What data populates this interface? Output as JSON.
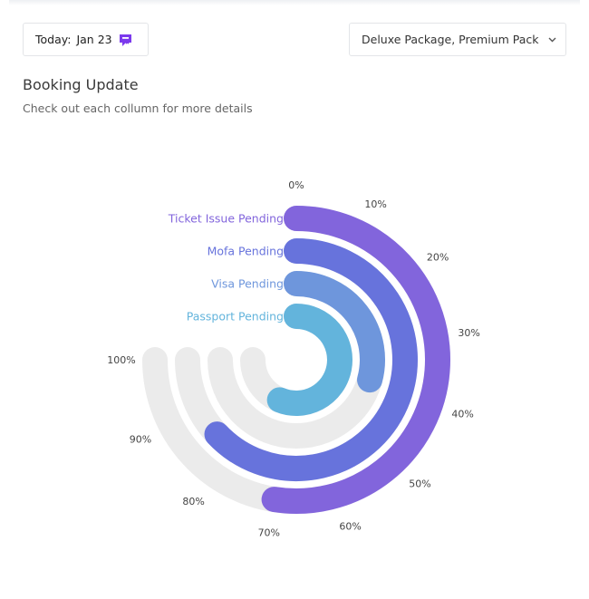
{
  "header": {
    "today_label": "Today:",
    "today_date": "Jan 23",
    "package_select": "Deluxe Package, Premium Pack"
  },
  "section": {
    "title": "Booking Update",
    "subtitle": "Check out each collumn for more details"
  },
  "chart_data": {
    "type": "radialBar",
    "ticks": [
      "0%",
      "10%",
      "20%",
      "30%",
      "40%",
      "50%",
      "60%",
      "70%",
      "80%",
      "90%",
      "100%"
    ],
    "series": [
      {
        "name": "Ticket Issue Pending",
        "value": 70,
        "color": "#8265dc"
      },
      {
        "name": "Mofa Pending",
        "value": 84,
        "color": "#6773dc"
      },
      {
        "name": "Visa Pending",
        "value": 39,
        "color": "#6e96dc"
      },
      {
        "name": "Passport Pending",
        "value": 75,
        "color": "#63b4dc"
      }
    ],
    "track_color": "#ebebeb",
    "max": 100,
    "sweep_degrees": 270
  }
}
